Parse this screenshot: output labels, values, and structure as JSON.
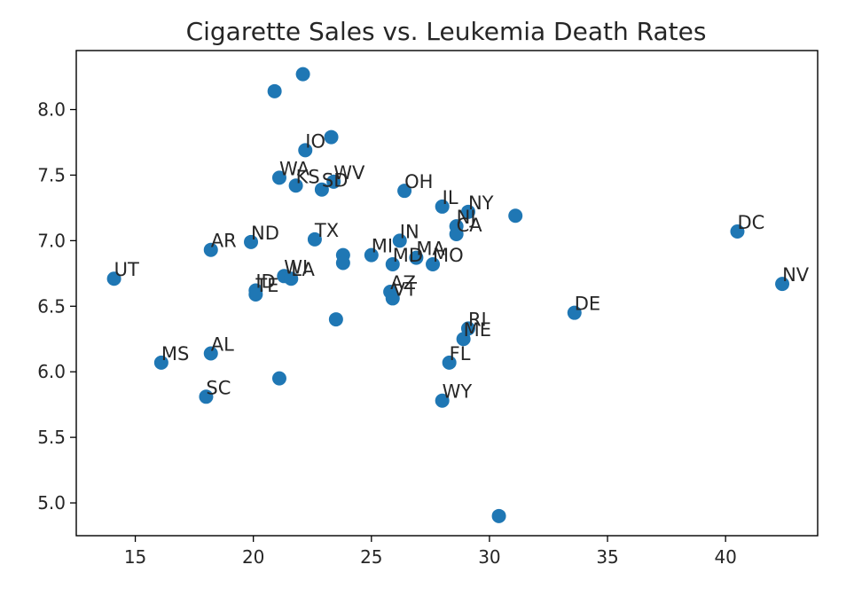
{
  "chart_data": {
    "type": "scatter",
    "title": "Cigarette Sales vs. Leukemia Death Rates",
    "xlabel": "",
    "ylabel": "",
    "xlim": [
      12.5,
      43.9
    ],
    "ylim": [
      4.75,
      8.45
    ],
    "xticks": [
      "15",
      "20",
      "25",
      "30",
      "35",
      "40"
    ],
    "xtick_values": [
      15,
      20,
      25,
      30,
      35,
      40
    ],
    "yticks": [
      "5.0",
      "5.5",
      "6.0",
      "6.5",
      "7.0",
      "7.5",
      "8.0"
    ],
    "ytick_values": [
      5.0,
      5.5,
      6.0,
      6.5,
      7.0,
      7.5,
      8.0
    ],
    "grid": false,
    "marker_color": "#1f77b4",
    "points": [
      {
        "x": 14.1,
        "y": 6.71,
        "label": "UT"
      },
      {
        "x": 16.1,
        "y": 6.07,
        "label": "MS"
      },
      {
        "x": 18.0,
        "y": 5.81,
        "label": "SC"
      },
      {
        "x": 18.2,
        "y": 6.14,
        "label": "AL"
      },
      {
        "x": 18.2,
        "y": 6.93,
        "label": "AR"
      },
      {
        "x": 19.9,
        "y": 6.99,
        "label": "ND"
      },
      {
        "x": 20.1,
        "y": 6.62,
        "label": "ID"
      },
      {
        "x": 20.1,
        "y": 6.59,
        "label": "TE"
      },
      {
        "x": 20.9,
        "y": 8.14,
        "label": ""
      },
      {
        "x": 21.1,
        "y": 7.48,
        "label": "WA"
      },
      {
        "x": 21.1,
        "y": 5.95,
        "label": ""
      },
      {
        "x": 21.3,
        "y": 6.73,
        "label": "WI"
      },
      {
        "x": 21.6,
        "y": 6.71,
        "label": "LA"
      },
      {
        "x": 21.8,
        "y": 7.42,
        "label": "KS"
      },
      {
        "x": 22.1,
        "y": 8.27,
        "label": ""
      },
      {
        "x": 22.2,
        "y": 7.69,
        "label": "IO"
      },
      {
        "x": 22.6,
        "y": 7.01,
        "label": "TX"
      },
      {
        "x": 22.9,
        "y": 7.39,
        "label": "SD"
      },
      {
        "x": 23.3,
        "y": 7.79,
        "label": ""
      },
      {
        "x": 23.4,
        "y": 7.45,
        "label": "WV"
      },
      {
        "x": 23.5,
        "y": 6.4,
        "label": ""
      },
      {
        "x": 23.8,
        "y": 6.89,
        "label": ""
      },
      {
        "x": 23.8,
        "y": 6.83,
        "label": ""
      },
      {
        "x": 25.0,
        "y": 6.89,
        "label": "MI"
      },
      {
        "x": 25.8,
        "y": 6.61,
        "label": "AZ"
      },
      {
        "x": 25.9,
        "y": 6.82,
        "label": "MD"
      },
      {
        "x": 25.9,
        "y": 6.56,
        "label": "VT"
      },
      {
        "x": 26.2,
        "y": 7.0,
        "label": "IN"
      },
      {
        "x": 26.4,
        "y": 7.38,
        "label": "OH"
      },
      {
        "x": 26.9,
        "y": 6.87,
        "label": "MA"
      },
      {
        "x": 27.6,
        "y": 6.82,
        "label": "MO"
      },
      {
        "x": 28.0,
        "y": 7.26,
        "label": "IL"
      },
      {
        "x": 28.0,
        "y": 5.78,
        "label": "WY"
      },
      {
        "x": 28.3,
        "y": 6.07,
        "label": "FL"
      },
      {
        "x": 28.6,
        "y": 7.11,
        "label": "NJ"
      },
      {
        "x": 28.6,
        "y": 7.05,
        "label": "CA"
      },
      {
        "x": 28.9,
        "y": 6.25,
        "label": "ME"
      },
      {
        "x": 29.1,
        "y": 6.33,
        "label": "RI"
      },
      {
        "x": 29.1,
        "y": 7.22,
        "label": "NY"
      },
      {
        "x": 30.4,
        "y": 4.9,
        "label": ""
      },
      {
        "x": 31.1,
        "y": 7.19,
        "label": ""
      },
      {
        "x": 33.6,
        "y": 6.45,
        "label": "DE"
      },
      {
        "x": 40.5,
        "y": 7.07,
        "label": "DC"
      },
      {
        "x": 42.4,
        "y": 6.67,
        "label": "NV"
      }
    ]
  }
}
